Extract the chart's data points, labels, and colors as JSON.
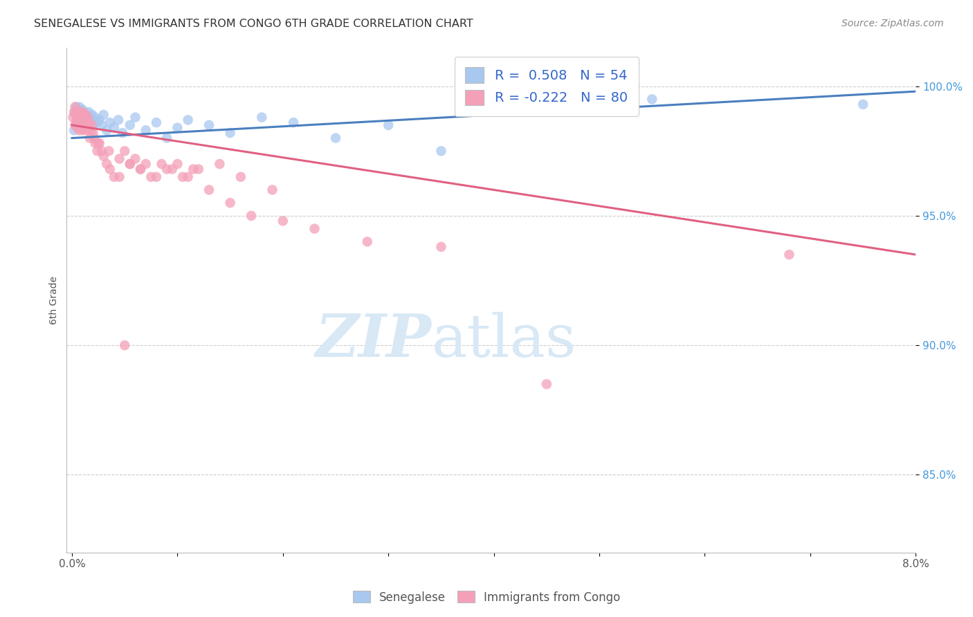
{
  "title": "SENEGALESE VS IMMIGRANTS FROM CONGO 6TH GRADE CORRELATION CHART",
  "source": "Source: ZipAtlas.com",
  "ylabel": "6th Grade",
  "xlim": [
    -0.05,
    8.0
  ],
  "ylim": [
    82.0,
    101.5
  ],
  "yticks": [
    85.0,
    90.0,
    95.0,
    100.0
  ],
  "ytick_labels": [
    "85.0%",
    "90.0%",
    "95.0%",
    "100.0%"
  ],
  "blue_R": 0.508,
  "blue_N": 54,
  "pink_R": -0.222,
  "pink_N": 80,
  "blue_color": "#A8C8F0",
  "pink_color": "#F4A0B8",
  "blue_line_color": "#4A7FBF",
  "pink_line_color": "#E06080",
  "watermark_zip": "ZIP",
  "watermark_atlas": "atlas",
  "watermark_color": "#D8E8F5",
  "blue_line_x0": 0.0,
  "blue_line_y0": 98.0,
  "blue_line_x1": 8.0,
  "blue_line_y1": 99.8,
  "pink_line_x0": 0.0,
  "pink_line_y0": 98.5,
  "pink_line_x1": 8.0,
  "pink_line_y1": 93.5,
  "blue_x": [
    0.02,
    0.03,
    0.04,
    0.04,
    0.05,
    0.05,
    0.06,
    0.06,
    0.07,
    0.07,
    0.08,
    0.08,
    0.09,
    0.09,
    0.1,
    0.1,
    0.11,
    0.11,
    0.12,
    0.12,
    0.13,
    0.14,
    0.15,
    0.16,
    0.17,
    0.18,
    0.19,
    0.2,
    0.22,
    0.24,
    0.26,
    0.28,
    0.3,
    0.33,
    0.36,
    0.4,
    0.44,
    0.48,
    0.55,
    0.6,
    0.7,
    0.8,
    0.9,
    1.0,
    1.1,
    1.3,
    1.5,
    1.8,
    2.1,
    2.5,
    3.0,
    3.5,
    5.5,
    7.5
  ],
  "blue_y": [
    98.3,
    99.0,
    98.5,
    99.2,
    98.8,
    99.1,
    98.6,
    99.0,
    98.7,
    99.2,
    98.4,
    98.9,
    99.0,
    98.5,
    98.8,
    99.1,
    98.6,
    98.9,
    98.7,
    99.0,
    98.5,
    98.8,
    98.6,
    99.0,
    98.4,
    98.7,
    98.9,
    98.5,
    98.8,
    98.6,
    98.7,
    98.5,
    98.9,
    98.3,
    98.6,
    98.4,
    98.7,
    98.2,
    98.5,
    98.8,
    98.3,
    98.6,
    98.0,
    98.4,
    98.7,
    98.5,
    98.2,
    98.8,
    98.6,
    98.0,
    98.5,
    97.5,
    99.5,
    99.3
  ],
  "pink_x": [
    0.01,
    0.02,
    0.03,
    0.03,
    0.04,
    0.04,
    0.05,
    0.05,
    0.05,
    0.06,
    0.06,
    0.07,
    0.07,
    0.07,
    0.08,
    0.08,
    0.08,
    0.09,
    0.09,
    0.1,
    0.1,
    0.1,
    0.11,
    0.11,
    0.12,
    0.12,
    0.13,
    0.13,
    0.14,
    0.14,
    0.15,
    0.15,
    0.16,
    0.17,
    0.18,
    0.19,
    0.2,
    0.21,
    0.22,
    0.24,
    0.26,
    0.28,
    0.3,
    0.33,
    0.36,
    0.4,
    0.45,
    0.5,
    0.55,
    0.6,
    0.65,
    0.7,
    0.8,
    0.9,
    1.0,
    1.1,
    1.2,
    1.4,
    1.6,
    1.9,
    0.25,
    0.35,
    0.45,
    0.55,
    0.65,
    0.75,
    0.85,
    0.95,
    1.05,
    1.15,
    1.3,
    1.5,
    1.7,
    2.0,
    2.3,
    2.8,
    3.5,
    4.5,
    0.5,
    6.8
  ],
  "pink_y": [
    98.8,
    99.0,
    98.5,
    99.2,
    98.6,
    98.9,
    98.7,
    99.0,
    98.4,
    98.8,
    98.5,
    98.9,
    98.3,
    98.7,
    98.6,
    99.0,
    98.4,
    98.8,
    98.5,
    98.7,
    99.0,
    98.3,
    98.6,
    98.9,
    98.4,
    98.7,
    98.5,
    98.9,
    98.3,
    98.6,
    98.8,
    98.4,
    98.6,
    98.0,
    98.3,
    98.5,
    98.2,
    98.0,
    97.8,
    97.5,
    97.8,
    97.5,
    97.3,
    97.0,
    96.8,
    96.5,
    96.5,
    97.5,
    97.0,
    97.2,
    96.8,
    97.0,
    96.5,
    96.8,
    97.0,
    96.5,
    96.8,
    97.0,
    96.5,
    96.0,
    97.8,
    97.5,
    97.2,
    97.0,
    96.8,
    96.5,
    97.0,
    96.8,
    96.5,
    96.8,
    96.0,
    95.5,
    95.0,
    94.8,
    94.5,
    94.0,
    93.8,
    88.5,
    90.0,
    93.5
  ]
}
